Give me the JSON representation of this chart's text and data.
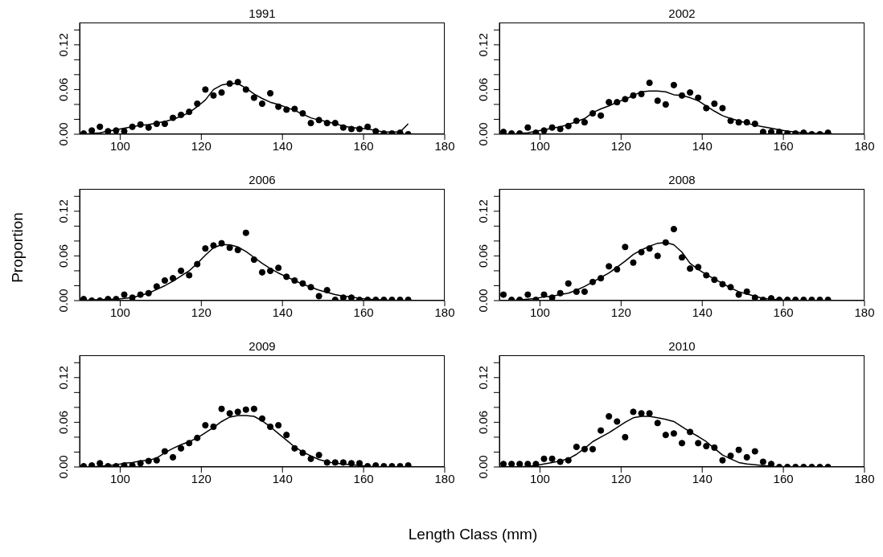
{
  "chart_data": [
    {
      "type": "scatter",
      "title": "1991",
      "xlim": [
        90,
        180
      ],
      "xticks": [
        100,
        120,
        140,
        160,
        180
      ],
      "ylim": [
        0,
        0.15
      ],
      "yticks": [
        {
          "value": 0,
          "label": "0.00"
        },
        {
          "value": 0.02,
          "label": null
        },
        {
          "value": 0.04,
          "label": null
        },
        {
          "value": 0.06,
          "label": "0.06"
        },
        {
          "value": 0.08,
          "label": null
        },
        {
          "value": 0.1,
          "label": null
        },
        {
          "value": 0.12,
          "label": "0.12"
        },
        {
          "value": 0.14,
          "label": null
        }
      ],
      "x": [
        91,
        93,
        95,
        97,
        99,
        101,
        103,
        105,
        107,
        109,
        111,
        113,
        115,
        117,
        119,
        121,
        123,
        125,
        127,
        129,
        131,
        133,
        135,
        137,
        139,
        141,
        143,
        145,
        147,
        149,
        151,
        153,
        155,
        157,
        159,
        161,
        163,
        165,
        167,
        169,
        171
      ],
      "series": [
        {
          "type": "scatter",
          "marker": "circle",
          "color": "#000000",
          "values": [
            0.001,
            0.005,
            0.01,
            0.004,
            0.005,
            0.004,
            0.01,
            0.013,
            0.009,
            0.014,
            0.014,
            0.022,
            0.026,
            0.03,
            0.041,
            0.06,
            0.052,
            0.056,
            0.068,
            0.07,
            0.06,
            0.049,
            0.041,
            0.055,
            0.037,
            0.033,
            0.034,
            0.028,
            0.015,
            0.019,
            0.015,
            0.015,
            0.009,
            0.007,
            0.007,
            0.01,
            0.004,
            0.001,
            0.001,
            0.002,
            0.0
          ]
        },
        {
          "type": "line",
          "color": "#000000",
          "values": [
            0.0,
            0.001,
            0.002,
            0.004,
            0.006,
            0.008,
            0.01,
            0.012,
            0.013,
            0.015,
            0.017,
            0.02,
            0.024,
            0.029,
            0.037,
            0.046,
            0.06,
            0.066,
            0.068,
            0.068,
            0.062,
            0.054,
            0.048,
            0.043,
            0.04,
            0.036,
            0.032,
            0.027,
            0.022,
            0.019,
            0.017,
            0.014,
            0.011,
            0.009,
            0.008,
            0.007,
            0.005,
            0.003,
            0.003,
            0.003,
            0.014
          ]
        }
      ]
    },
    {
      "type": "scatter",
      "title": "2002",
      "xlim": [
        90,
        180
      ],
      "xticks": [
        100,
        120,
        140,
        160,
        180
      ],
      "ylim": [
        0,
        0.15
      ],
      "yticks": [
        {
          "value": 0,
          "label": "0.00"
        },
        {
          "value": 0.02,
          "label": null
        },
        {
          "value": 0.04,
          "label": null
        },
        {
          "value": 0.06,
          "label": "0.06"
        },
        {
          "value": 0.08,
          "label": null
        },
        {
          "value": 0.1,
          "label": null
        },
        {
          "value": 0.12,
          "label": "0.12"
        },
        {
          "value": 0.14,
          "label": null
        }
      ],
      "x": [
        91,
        93,
        95,
        97,
        99,
        101,
        103,
        105,
        107,
        109,
        111,
        113,
        115,
        117,
        119,
        121,
        123,
        125,
        127,
        129,
        131,
        133,
        135,
        137,
        139,
        141,
        143,
        145,
        147,
        149,
        151,
        153,
        155,
        157,
        159,
        161,
        163,
        165,
        167,
        169,
        171
      ],
      "series": [
        {
          "type": "scatter",
          "marker": "circle",
          "color": "#000000",
          "values": [
            0.003,
            0.001,
            0.001,
            0.009,
            0.002,
            0.005,
            0.009,
            0.007,
            0.011,
            0.018,
            0.016,
            0.028,
            0.025,
            0.043,
            0.043,
            0.047,
            0.052,
            0.054,
            0.069,
            0.045,
            0.04,
            0.066,
            0.052,
            0.056,
            0.049,
            0.035,
            0.041,
            0.035,
            0.018,
            0.016,
            0.016,
            0.014,
            0.003,
            0.003,
            0.003,
            0.001,
            0.001,
            0.002,
            0.0,
            0.0,
            0.002
          ]
        },
        {
          "type": "line",
          "color": "#000000",
          "values": [
            0.0,
            0.0,
            0.001,
            0.002,
            0.004,
            0.006,
            0.008,
            0.01,
            0.013,
            0.017,
            0.021,
            0.029,
            0.034,
            0.038,
            0.043,
            0.047,
            0.052,
            0.057,
            0.058,
            0.058,
            0.057,
            0.053,
            0.052,
            0.049,
            0.045,
            0.038,
            0.031,
            0.025,
            0.021,
            0.018,
            0.015,
            0.012,
            0.01,
            0.008,
            0.006,
            0.004,
            0.003,
            0.002,
            0.001,
            0.001,
            0.001
          ]
        }
      ]
    },
    {
      "type": "scatter",
      "title": "2006",
      "ylabel": "Proportion",
      "xlim": [
        90,
        180
      ],
      "xticks": [
        100,
        120,
        140,
        160,
        180
      ],
      "ylim": [
        0,
        0.15
      ],
      "yticks": [
        {
          "value": 0,
          "label": "0.00"
        },
        {
          "value": 0.02,
          "label": null
        },
        {
          "value": 0.04,
          "label": null
        },
        {
          "value": 0.06,
          "label": "0.06"
        },
        {
          "value": 0.08,
          "label": null
        },
        {
          "value": 0.1,
          "label": null
        },
        {
          "value": 0.12,
          "label": "0.12"
        },
        {
          "value": 0.14,
          "label": null
        }
      ],
      "x": [
        91,
        93,
        95,
        97,
        99,
        101,
        103,
        105,
        107,
        109,
        111,
        113,
        115,
        117,
        119,
        121,
        123,
        125,
        127,
        129,
        131,
        133,
        135,
        137,
        139,
        141,
        143,
        145,
        147,
        149,
        151,
        153,
        155,
        157,
        159,
        161,
        163,
        165,
        167,
        169,
        171
      ],
      "series": [
        {
          "type": "scatter",
          "marker": "circle",
          "color": "#000000",
          "values": [
            0.002,
            0.0,
            0.0,
            0.002,
            0.002,
            0.008,
            0.004,
            0.008,
            0.01,
            0.019,
            0.027,
            0.03,
            0.04,
            0.034,
            0.049,
            0.07,
            0.074,
            0.077,
            0.071,
            0.068,
            0.091,
            0.055,
            0.038,
            0.04,
            0.044,
            0.032,
            0.027,
            0.023,
            0.018,
            0.006,
            0.014,
            0.001,
            0.004,
            0.004,
            0.001,
            0.001,
            0.001,
            0.001,
            0.001,
            0.001,
            0.001
          ]
        },
        {
          "type": "line",
          "color": "#000000",
          "values": [
            0.0,
            0.001,
            0.001,
            0.002,
            0.002,
            0.003,
            0.004,
            0.007,
            0.01,
            0.015,
            0.02,
            0.026,
            0.033,
            0.04,
            0.05,
            0.061,
            0.071,
            0.075,
            0.075,
            0.072,
            0.066,
            0.058,
            0.05,
            0.043,
            0.037,
            0.032,
            0.027,
            0.022,
            0.018,
            0.014,
            0.011,
            0.008,
            0.006,
            0.005,
            0.003,
            0.002,
            0.001,
            0.001,
            0.0,
            0.0,
            0.0
          ]
        }
      ]
    },
    {
      "type": "scatter",
      "title": "2008",
      "xlim": [
        90,
        180
      ],
      "xticks": [
        100,
        120,
        140,
        160,
        180
      ],
      "ylim": [
        0,
        0.15
      ],
      "yticks": [
        {
          "value": 0,
          "label": "0.00"
        },
        {
          "value": 0.02,
          "label": null
        },
        {
          "value": 0.04,
          "label": null
        },
        {
          "value": 0.06,
          "label": "0.06"
        },
        {
          "value": 0.08,
          "label": null
        },
        {
          "value": 0.1,
          "label": null
        },
        {
          "value": 0.12,
          "label": "0.12"
        },
        {
          "value": 0.14,
          "label": null
        }
      ],
      "x": [
        91,
        93,
        95,
        97,
        99,
        101,
        103,
        105,
        107,
        109,
        111,
        113,
        115,
        117,
        119,
        121,
        123,
        125,
        127,
        129,
        131,
        133,
        135,
        137,
        139,
        141,
        143,
        145,
        147,
        149,
        151,
        153,
        155,
        157,
        159,
        161,
        163,
        165,
        167,
        169,
        171
      ],
      "series": [
        {
          "type": "scatter",
          "marker": "circle",
          "color": "#000000",
          "values": [
            0.008,
            0.001,
            0.001,
            0.008,
            0.001,
            0.008,
            0.004,
            0.01,
            0.023,
            0.012,
            0.012,
            0.025,
            0.03,
            0.046,
            0.042,
            0.072,
            0.051,
            0.065,
            0.07,
            0.06,
            0.078,
            0.096,
            0.058,
            0.043,
            0.045,
            0.034,
            0.028,
            0.022,
            0.018,
            0.008,
            0.012,
            0.004,
            0.001,
            0.003,
            0.001,
            0.001,
            0.001,
            0.001,
            0.001,
            0.001,
            0.001
          ]
        },
        {
          "type": "line",
          "color": "#000000",
          "values": [
            0.0,
            0.0,
            0.001,
            0.002,
            0.003,
            0.005,
            0.006,
            0.008,
            0.01,
            0.014,
            0.019,
            0.025,
            0.031,
            0.037,
            0.045,
            0.053,
            0.062,
            0.068,
            0.073,
            0.077,
            0.078,
            0.075,
            0.065,
            0.05,
            0.042,
            0.035,
            0.029,
            0.023,
            0.017,
            0.012,
            0.009,
            0.006,
            0.003,
            0.002,
            0.001,
            0.0,
            0.0,
            0.0,
            0.0,
            0.0,
            0.0
          ]
        }
      ]
    },
    {
      "type": "scatter",
      "title": "2009",
      "xlabel": "Length Class (mm)",
      "xlim": [
        90,
        180
      ],
      "xticks": [
        100,
        120,
        140,
        160,
        180
      ],
      "ylim": [
        0,
        0.15
      ],
      "yticks": [
        {
          "value": 0,
          "label": "0.00"
        },
        {
          "value": 0.02,
          "label": null
        },
        {
          "value": 0.04,
          "label": null
        },
        {
          "value": 0.06,
          "label": "0.06"
        },
        {
          "value": 0.08,
          "label": null
        },
        {
          "value": 0.1,
          "label": null
        },
        {
          "value": 0.12,
          "label": "0.12"
        },
        {
          "value": 0.14,
          "label": null
        }
      ],
      "x": [
        91,
        93,
        95,
        97,
        99,
        101,
        103,
        105,
        107,
        109,
        111,
        113,
        115,
        117,
        119,
        121,
        123,
        125,
        127,
        129,
        131,
        133,
        135,
        137,
        139,
        141,
        143,
        145,
        147,
        149,
        151,
        153,
        155,
        157,
        159,
        161,
        163,
        165,
        167,
        169,
        171
      ],
      "series": [
        {
          "type": "scatter",
          "marker": "circle",
          "color": "#000000",
          "values": [
            0.001,
            0.002,
            0.005,
            0.001,
            0.001,
            0.002,
            0.002,
            0.005,
            0.008,
            0.009,
            0.021,
            0.013,
            0.025,
            0.032,
            0.039,
            0.056,
            0.054,
            0.078,
            0.072,
            0.074,
            0.077,
            0.078,
            0.065,
            0.054,
            0.056,
            0.043,
            0.025,
            0.019,
            0.011,
            0.016,
            0.006,
            0.006,
            0.006,
            0.005,
            0.005,
            0.001,
            0.002,
            0.001,
            0.001,
            0.001,
            0.002
          ]
        },
        {
          "type": "line",
          "color": "#000000",
          "values": [
            0.0,
            0.0,
            0.001,
            0.002,
            0.003,
            0.005,
            0.006,
            0.008,
            0.009,
            0.012,
            0.019,
            0.025,
            0.03,
            0.034,
            0.039,
            0.046,
            0.053,
            0.061,
            0.067,
            0.069,
            0.069,
            0.068,
            0.062,
            0.054,
            0.045,
            0.036,
            0.027,
            0.02,
            0.015,
            0.01,
            0.007,
            0.005,
            0.004,
            0.003,
            0.002,
            0.001,
            0.0,
            0.0,
            0.0,
            0.0,
            0.0
          ]
        }
      ]
    },
    {
      "type": "scatter",
      "title": "2010",
      "xlim": [
        90,
        180
      ],
      "xticks": [
        100,
        120,
        140,
        160,
        180
      ],
      "ylim": [
        0,
        0.15
      ],
      "yticks": [
        {
          "value": 0,
          "label": "0.00"
        },
        {
          "value": 0.02,
          "label": null
        },
        {
          "value": 0.04,
          "label": null
        },
        {
          "value": 0.06,
          "label": "0.06"
        },
        {
          "value": 0.08,
          "label": null
        },
        {
          "value": 0.1,
          "label": null
        },
        {
          "value": 0.12,
          "label": "0.12"
        },
        {
          "value": 0.14,
          "label": null
        }
      ],
      "x": [
        91,
        93,
        95,
        97,
        99,
        101,
        103,
        105,
        107,
        109,
        111,
        113,
        115,
        117,
        119,
        121,
        123,
        125,
        127,
        129,
        131,
        133,
        135,
        137,
        139,
        141,
        143,
        145,
        147,
        149,
        151,
        153,
        155,
        157,
        159,
        161,
        163,
        165,
        167,
        169,
        171
      ],
      "series": [
        {
          "type": "scatter",
          "marker": "circle",
          "color": "#000000",
          "values": [
            0.004,
            0.004,
            0.004,
            0.004,
            0.004,
            0.011,
            0.011,
            0.007,
            0.009,
            0.027,
            0.024,
            0.024,
            0.049,
            0.068,
            0.061,
            0.04,
            0.074,
            0.072,
            0.072,
            0.059,
            0.043,
            0.045,
            0.032,
            0.047,
            0.032,
            0.028,
            0.026,
            0.009,
            0.015,
            0.023,
            0.013,
            0.021,
            0.007,
            0.004,
            0.0,
            0.0,
            0.0,
            0.0,
            0.0,
            0.0,
            0.0
          ]
        },
        {
          "type": "line",
          "color": "#000000",
          "values": [
            0.0,
            0.0,
            0.0,
            0.001,
            0.002,
            0.004,
            0.006,
            0.008,
            0.011,
            0.017,
            0.025,
            0.034,
            0.04,
            0.046,
            0.053,
            0.06,
            0.066,
            0.068,
            0.068,
            0.066,
            0.064,
            0.061,
            0.054,
            0.047,
            0.041,
            0.034,
            0.025,
            0.016,
            0.011,
            0.006,
            0.004,
            0.003,
            0.002,
            0.001,
            0.0,
            0.0,
            0.0,
            0.0,
            0.0,
            0.0,
            0.0
          ]
        }
      ]
    }
  ]
}
